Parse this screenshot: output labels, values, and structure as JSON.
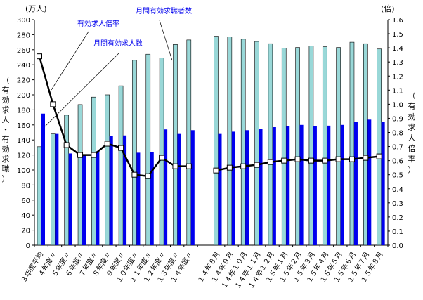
{
  "chart_data": {
    "type": "bar+line",
    "left_unit": "(万人)",
    "right_unit": "(倍)",
    "ylabel_left": "（有効求人・有効求職）",
    "ylabel_right": "（有効求人倍率）",
    "ylim_left": [
      0,
      300
    ],
    "ylim_right": [
      0,
      1.6
    ],
    "left_ticks": [
      "0",
      "20",
      "40",
      "60",
      "80",
      "100",
      "120",
      "140",
      "160",
      "180",
      "200",
      "220",
      "240",
      "260",
      "280",
      "300"
    ],
    "right_ticks": [
      "0.0",
      "0.1",
      "0.2",
      "0.3",
      "0.4",
      "0.5",
      "0.6",
      "0.7",
      "0.8",
      "0.9",
      "1.0",
      "1.1",
      "1.2",
      "1.3",
      "1.4",
      "1.5",
      "1.6"
    ],
    "grid": false,
    "categories": [
      "３年度平均",
      "４年度〃",
      "５年度〃",
      "６年度〃",
      "７年度〃",
      "８年度〃",
      "９年度〃",
      "１０年度〃",
      "１１年度〃",
      "１２年度〃",
      "１３年度〃",
      "１４年度〃",
      "",
      "１４年８月",
      "１４年９月",
      "１４年１０月",
      "１４年１１月",
      "１４年１２月",
      "１５年１月",
      "１５年２月",
      "１５年３月",
      "１５年４月",
      "１５年５月",
      "１５年６月",
      "１５年７月",
      "１５年８月"
    ],
    "series": [
      {
        "name": "月間有効求職者数",
        "type": "bar",
        "axis": "left",
        "color": "#99d8d8",
        "values": [
          131,
          148,
          173,
          187,
          197,
          200,
          212,
          246,
          254,
          249,
          267,
          273,
          null,
          278,
          277,
          274,
          271,
          268,
          262,
          263,
          265,
          264,
          263,
          270,
          268,
          261
        ]
      },
      {
        "name": "月間有効求人数",
        "type": "bar",
        "axis": "left",
        "color": "#0000ee",
        "values": [
          175,
          148,
          122,
          120,
          125,
          145,
          146,
          123,
          124,
          154,
          148,
          153,
          null,
          148,
          151,
          153,
          155,
          157,
          158,
          160,
          158,
          159,
          160,
          164,
          167,
          164
        ]
      },
      {
        "name": "有効求人倍率",
        "type": "line",
        "axis": "right",
        "color": "#000000",
        "values": [
          1.34,
          1.0,
          0.71,
          0.64,
          0.64,
          0.72,
          0.69,
          0.5,
          0.49,
          0.62,
          0.56,
          0.56,
          null,
          0.53,
          0.55,
          0.56,
          0.57,
          0.59,
          0.6,
          0.61,
          0.6,
          0.6,
          0.61,
          0.61,
          0.62,
          0.63
        ]
      }
    ]
  }
}
